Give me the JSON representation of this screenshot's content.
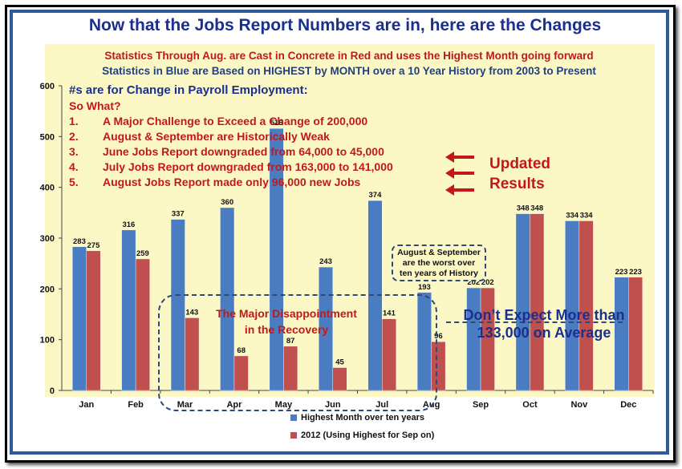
{
  "title": "Now that the Jobs Report Numbers are in, here are the Changes",
  "subtitle_red": "Statistics Through Aug. are Cast in Concrete in Red and uses the Highest Month going forward",
  "subtitle_blue": "Statistics in Blue are Based on HIGHEST by MONTH over a 10 Year History from 2003 to Present",
  "notes": {
    "heading": "#s are for Change in Payroll Employment:",
    "question": "So What?",
    "items": [
      {
        "num": "1.",
        "text": "A Major Challenge to Exceed a Change of 200,000"
      },
      {
        "num": "2.",
        "text": "August & September are Historically Weak"
      },
      {
        "num": "3.",
        "text": "June Jobs Report downgraded from 64,000 to 45,000"
      },
      {
        "num": "4.",
        "text": "July Jobs Report downgraded from 163,000 to 141,000"
      },
      {
        "num": "5.",
        "text": "August Jobs Report made only 96,000 new Jobs"
      }
    ]
  },
  "annotations": {
    "updated_line1": "Updated",
    "updated_line2": "Results",
    "aug_sep_line1": "August & September",
    "aug_sep_line2": "are  the worst over",
    "aug_sep_line3": "ten years of History",
    "disappoint_line1": "The Major Disappointment",
    "disappoint_line2": "in the Recovery",
    "expect_line1": "Don’t Expect More than",
    "expect_line2": "133,000 on Average"
  },
  "colors": {
    "blue": "#4a7cc1",
    "red": "#c0504d",
    "title": "#1a2f8f",
    "accent_red": "#c21818"
  },
  "chart_data": {
    "type": "bar",
    "categories": [
      "Jan",
      "Feb",
      "Mar",
      "Apr",
      "May",
      "Jun",
      "Jul",
      "Aug",
      "Sep",
      "Oct",
      "Nov",
      "Dec"
    ],
    "series": [
      {
        "name": "Highest Month over ten years",
        "values": [
          283,
          316,
          337,
          360,
          516,
          243,
          374,
          193,
          202,
          348,
          334,
          223
        ]
      },
      {
        "name": "2012 (Using Highest for Sep on)",
        "values": [
          275,
          259,
          143,
          68,
          87,
          45,
          141,
          96,
          202,
          348,
          334,
          223
        ]
      }
    ],
    "ylim": [
      0,
      600
    ],
    "yticks": [
      0,
      100,
      200,
      300,
      400,
      500,
      600
    ],
    "grid": false,
    "legend_position": "bottom"
  }
}
